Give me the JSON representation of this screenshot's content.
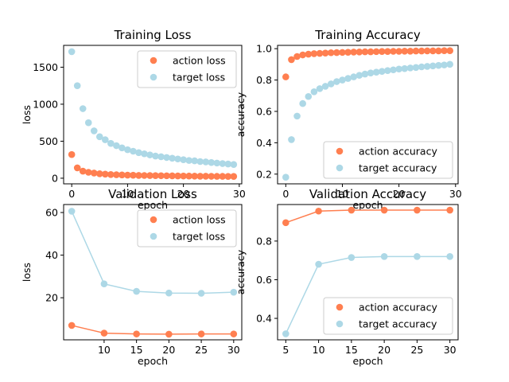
{
  "colors": {
    "action": "#ff7f50",
    "target": "#add8e6"
  },
  "chart_data": [
    {
      "type": "scatter",
      "title": "Training Loss",
      "xlabel": "epoch",
      "ylabel": "loss",
      "xlim": [
        -1.45,
        30.45
      ],
      "ylim": [
        -76,
        1795
      ],
      "xticks": [
        0,
        10,
        20,
        30
      ],
      "yticks": [
        0,
        500,
        1000,
        1500
      ],
      "lines": false,
      "legend_position": "upper right",
      "x": [
        0,
        1,
        2,
        3,
        4,
        5,
        6,
        7,
        8,
        9,
        10,
        11,
        12,
        13,
        14,
        15,
        16,
        17,
        18,
        19,
        20,
        21,
        22,
        23,
        24,
        25,
        26,
        27,
        28,
        29
      ],
      "series": [
        {
          "name": "action loss",
          "color": "action",
          "values": [
            320,
            140,
            95,
            80,
            70,
            60,
            55,
            50,
            47,
            44,
            42,
            40,
            38,
            37,
            36,
            35,
            34,
            33,
            32,
            31,
            30,
            29,
            28,
            27,
            27,
            26,
            25,
            25,
            24,
            24
          ]
        },
        {
          "name": "target loss",
          "color": "target",
          "values": [
            1710,
            1250,
            940,
            750,
            640,
            560,
            520,
            470,
            440,
            410,
            385,
            365,
            345,
            330,
            315,
            300,
            290,
            280,
            270,
            260,
            250,
            240,
            235,
            225,
            220,
            212,
            205,
            198,
            192,
            185
          ]
        }
      ]
    },
    {
      "type": "scatter",
      "title": "Training Accuracy",
      "xlabel": "epoch",
      "ylabel": "accuracy",
      "xlim": [
        -1.45,
        30.45
      ],
      "ylim": [
        0.138,
        1.021
      ],
      "xticks": [
        0,
        10,
        20,
        30
      ],
      "yticks": [
        0.2,
        0.4,
        0.6,
        0.8,
        1.0
      ],
      "lines": false,
      "legend_position": "lower right",
      "x": [
        0,
        1,
        2,
        3,
        4,
        5,
        6,
        7,
        8,
        9,
        10,
        11,
        12,
        13,
        14,
        15,
        16,
        17,
        18,
        19,
        20,
        21,
        22,
        23,
        24,
        25,
        26,
        27,
        28,
        29
      ],
      "series": [
        {
          "name": "action accuracy",
          "color": "action",
          "values": [
            0.82,
            0.93,
            0.95,
            0.96,
            0.965,
            0.968,
            0.97,
            0.972,
            0.974,
            0.975,
            0.976,
            0.977,
            0.978,
            0.979,
            0.98,
            0.98,
            0.981,
            0.982,
            0.982,
            0.983,
            0.983,
            0.984,
            0.984,
            0.985,
            0.985,
            0.986,
            0.986,
            0.986,
            0.987,
            0.987
          ]
        },
        {
          "name": "target accuracy",
          "color": "target",
          "values": [
            0.18,
            0.42,
            0.57,
            0.65,
            0.695,
            0.725,
            0.745,
            0.76,
            0.775,
            0.79,
            0.8,
            0.81,
            0.82,
            0.83,
            0.838,
            0.845,
            0.85,
            0.855,
            0.86,
            0.865,
            0.87,
            0.873,
            0.877,
            0.88,
            0.884,
            0.887,
            0.89,
            0.893,
            0.896,
            0.9
          ]
        }
      ]
    },
    {
      "type": "line",
      "title": "Validation Loss",
      "xlabel": "epoch",
      "ylabel": "loss",
      "xlim": [
        3.75,
        31.25
      ],
      "ylim": [
        0.25,
        63.75
      ],
      "xticks": [
        10,
        15,
        20,
        25,
        30
      ],
      "yticks": [
        20,
        40,
        60
      ],
      "lines": true,
      "legend_position": "upper right",
      "x": [
        5,
        10,
        15,
        20,
        25,
        30
      ],
      "series": [
        {
          "name": "action loss",
          "color": "action",
          "values": [
            7.0,
            3.4,
            3.0,
            2.9,
            3.0,
            3.0
          ]
        },
        {
          "name": "target loss",
          "color": "target",
          "values": [
            60.6,
            26.5,
            23.0,
            22.2,
            22.1,
            22.6
          ]
        }
      ]
    },
    {
      "type": "line",
      "title": "Validation Accuracy",
      "xlabel": "epoch",
      "ylabel": "accuracy",
      "xlim": [
        3.75,
        31.25
      ],
      "ylim": [
        0.289,
        0.989
      ],
      "xticks": [
        5,
        10,
        15,
        20,
        25,
        30
      ],
      "yticks": [
        0.4,
        0.6,
        0.8
      ],
      "lines": true,
      "legend_position": "lower right",
      "x": [
        5,
        10,
        15,
        20,
        25,
        30
      ],
      "series": [
        {
          "name": "action accuracy",
          "color": "action",
          "values": [
            0.895,
            0.955,
            0.96,
            0.96,
            0.96,
            0.96
          ]
        },
        {
          "name": "target accuracy",
          "color": "target",
          "values": [
            0.32,
            0.68,
            0.715,
            0.72,
            0.72,
            0.72
          ]
        }
      ]
    }
  ]
}
